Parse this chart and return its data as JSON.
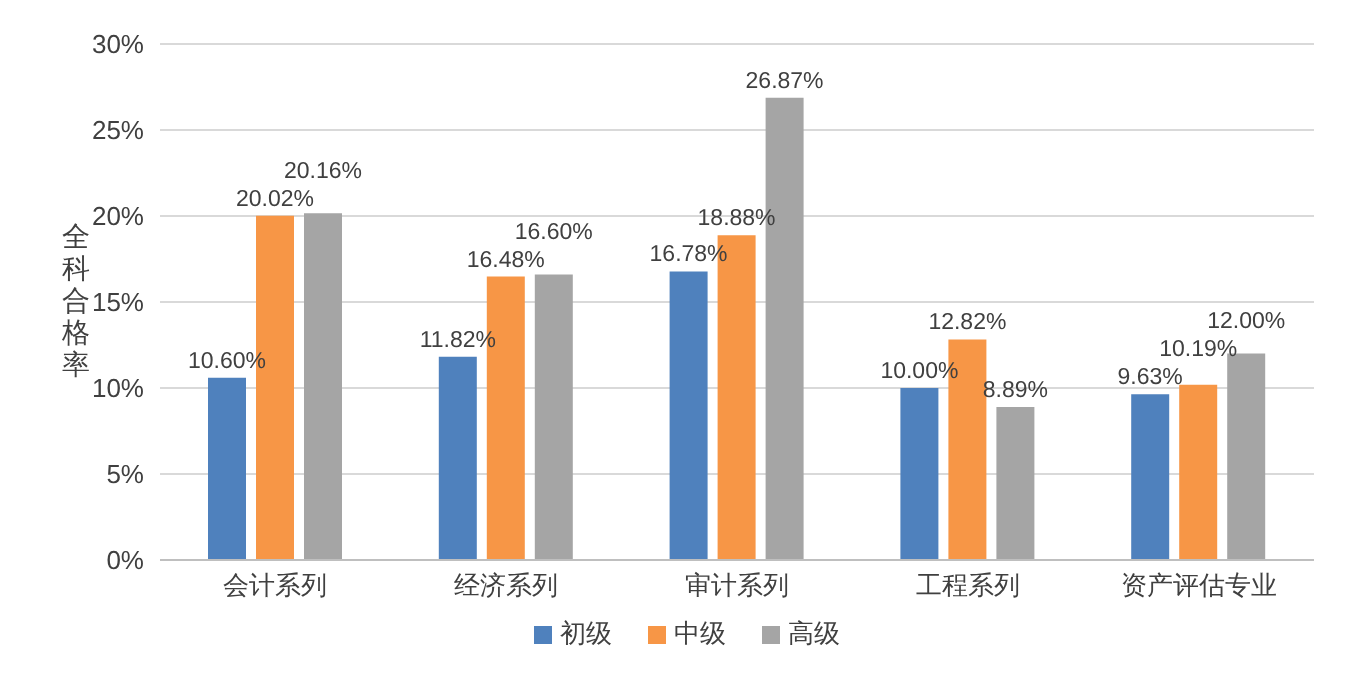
{
  "chart_data": {
    "type": "bar",
    "ylabel": "全科合格率",
    "categories": [
      "会计系列",
      "经济系列",
      "审计系列",
      "工程系列",
      "资产评估专业"
    ],
    "series": [
      {
        "name": "初级",
        "color": "#4f81bd",
        "values": [
          10.6,
          11.82,
          16.78,
          10.0,
          9.63
        ],
        "value_labels": [
          "10.60%",
          "11.82%",
          "16.78%",
          "10.00%",
          "9.63%"
        ]
      },
      {
        "name": "中级",
        "color": "#f79646",
        "values": [
          20.02,
          16.48,
          18.88,
          12.82,
          10.19
        ],
        "value_labels": [
          "20.02%",
          "16.48%",
          "18.88%",
          "12.82%",
          "10.19%"
        ]
      },
      {
        "name": "高级",
        "color": "#a5a5a5",
        "values": [
          20.16,
          16.6,
          26.87,
          8.89,
          12.0
        ],
        "value_labels": [
          "20.16%",
          "16.60%",
          "26.87%",
          "8.89%",
          "12.00%"
        ]
      }
    ],
    "ylim": [
      0,
      30
    ],
    "yticks": [
      {
        "value": 0,
        "label": "0%"
      },
      {
        "value": 5,
        "label": "5%"
      },
      {
        "value": 10,
        "label": "10%"
      },
      {
        "value": 15,
        "label": "15%"
      },
      {
        "value": 20,
        "label": "20%"
      },
      {
        "value": 25,
        "label": "25%"
      },
      {
        "value": 30,
        "label": "30%"
      }
    ],
    "grid": "y",
    "legend": "bottom"
  }
}
